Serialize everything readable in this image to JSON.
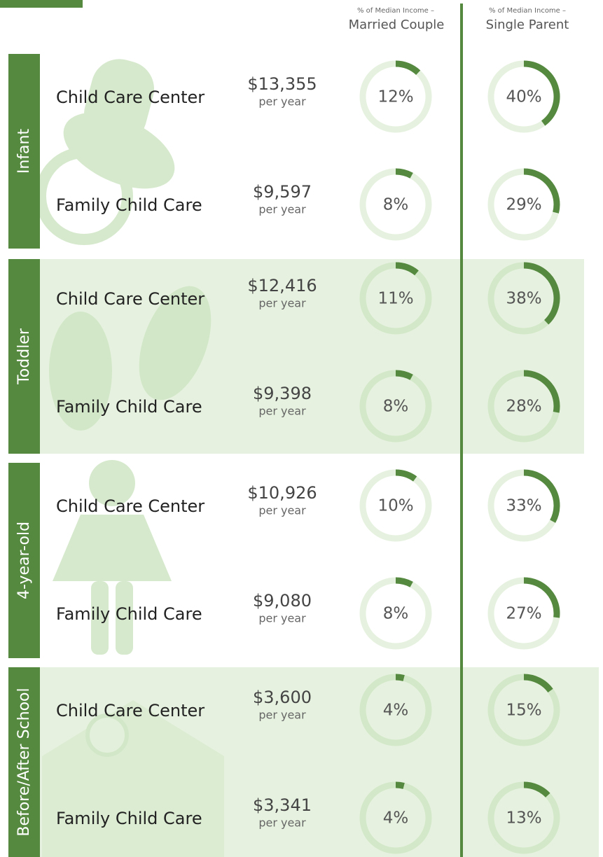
{
  "header": {
    "income_note": "% of Median Income –",
    "married": "Married Couple",
    "single": "Single Parent"
  },
  "cost_unit": "per year",
  "groups": [
    {
      "label": "Infant",
      "rows": [
        {
          "label": "Child Care Center",
          "cost": "$13,355",
          "married": {
            "value": 12,
            "label": "12%"
          },
          "single": {
            "value": 40,
            "label": "40%"
          }
        },
        {
          "label": "Family Child Care",
          "cost": "$9,597",
          "married": {
            "value": 8,
            "label": "8%"
          },
          "single": {
            "value": 29,
            "label": "29%"
          }
        }
      ]
    },
    {
      "label": "Toddler",
      "rows": [
        {
          "label": "Child Care Center",
          "cost": "$12,416",
          "married": {
            "value": 11,
            "label": "11%"
          },
          "single": {
            "value": 38,
            "label": "38%"
          }
        },
        {
          "label": "Family Child Care",
          "cost": "$9,398",
          "married": {
            "value": 8,
            "label": "8%"
          },
          "single": {
            "value": 28,
            "label": "28%"
          }
        }
      ]
    },
    {
      "label": "4-year-old",
      "rows": [
        {
          "label": "Child Care Center",
          "cost": "$10,926",
          "married": {
            "value": 10,
            "label": "10%"
          },
          "single": {
            "value": 33,
            "label": "33%"
          }
        },
        {
          "label": "Family Child Care",
          "cost": "$9,080",
          "married": {
            "value": 8,
            "label": "8%"
          },
          "single": {
            "value": 27,
            "label": "27%"
          }
        }
      ]
    },
    {
      "label": "Before/After School",
      "rows": [
        {
          "label": "Child Care Center",
          "cost": "$3,600",
          "married": {
            "value": 4,
            "label": "4%"
          },
          "single": {
            "value": 15,
            "label": "15%"
          }
        },
        {
          "label": "Family Child Care",
          "cost": "$3,341",
          "married": {
            "value": 4,
            "label": "4%"
          },
          "single": {
            "value": 13,
            "label": "13%"
          }
        }
      ]
    }
  ]
}
